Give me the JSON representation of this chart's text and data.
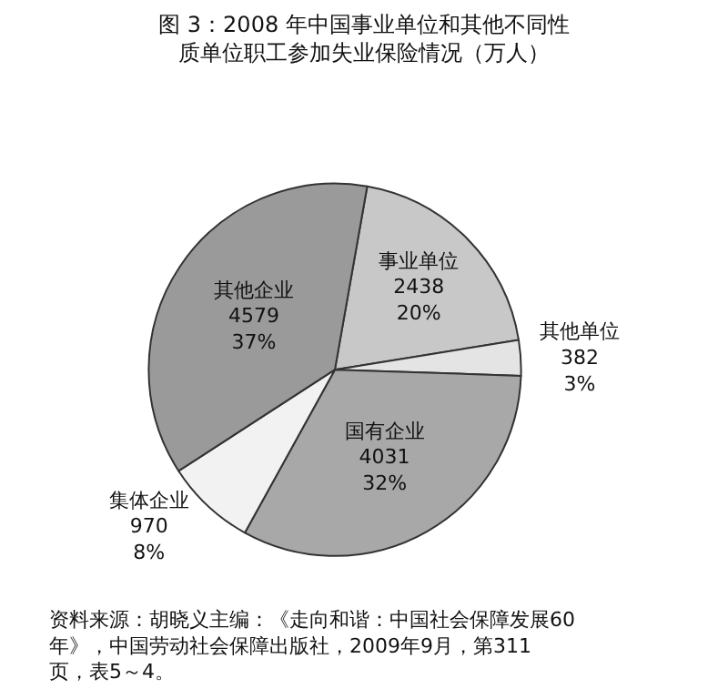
{
  "chart_data": {
    "type": "pie",
    "title": "图 3：2008 年中国事业单位和其他不同性质单位职工参加失业保险情况（万人）",
    "categories": [
      "事业单位",
      "其他单位",
      "国有企业",
      "集体企业",
      "其他企业"
    ],
    "values": [
      2438,
      382,
      4031,
      970,
      4579
    ],
    "value_labels": [
      "2438\n20%",
      "382\n3%",
      "4031\n32%",
      "970\n8%",
      "4579\n37%"
    ],
    "colors": [
      "#c8c8c8",
      "#e4e4e4",
      "#a8a8a8",
      "#f2f2f2",
      "#9a9a9a"
    ],
    "legend": false,
    "annotations": [
      "资料来源：胡晓义主编：《走向和谐：中国社会保障发展60年》，中国劳动社会保障出版社，2009年9月，第311页，表5～4。"
    ]
  }
}
